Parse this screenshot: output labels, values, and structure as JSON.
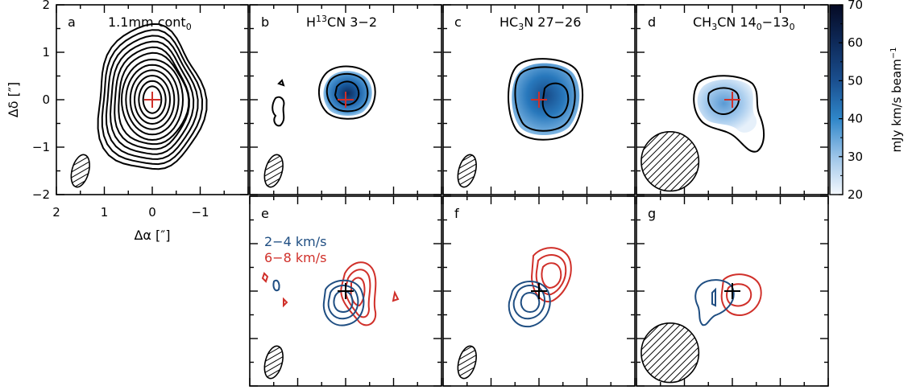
{
  "chart_data": [
    {
      "type": "contour",
      "panel": "a",
      "label_letter": "a",
      "label_text": "1.1mm cont",
      "label_sub": "0",
      "xlabel": "Δα [″]",
      "ylabel": "Δδ [″]",
      "xlim": [
        2,
        -2
      ],
      "ylim": [
        -2,
        2
      ],
      "xticks": [
        "2",
        "1",
        "0",
        "−1"
      ],
      "yticks": [
        "2",
        "1",
        "0",
        "−1",
        "−2"
      ],
      "contour_levels": 12,
      "marker": {
        "x": 0,
        "y": 0,
        "color": "#d0302a"
      },
      "beam": {
        "x": 1.5,
        "y": -1.5,
        "major": 0.7,
        "minor": 0.35
      }
    },
    {
      "type": "heatmap",
      "panel": "b",
      "label_letter": "b",
      "label_parts": [
        {
          "t": "H"
        },
        {
          "t": "13",
          "sup": true
        },
        {
          "t": "CN 3−2"
        }
      ],
      "peak_mJy": 55,
      "contour_levels": 3,
      "marker": {
        "x": 0,
        "y": 0,
        "color": "#d0302a"
      },
      "beam": {
        "x": 1.5,
        "y": -1.5,
        "major": 0.7,
        "minor": 0.35
      }
    },
    {
      "type": "heatmap",
      "panel": "c",
      "label_letter": "c",
      "label_parts": [
        {
          "t": "HC"
        },
        {
          "t": "3",
          "sub": true
        },
        {
          "t": "N 27−26"
        }
      ],
      "peak_mJy": 50,
      "contour_levels": 3,
      "marker": {
        "x": 0,
        "y": 0,
        "color": "#d0302a"
      },
      "beam": {
        "x": 1.5,
        "y": -1.5,
        "major": 0.7,
        "minor": 0.35
      }
    },
    {
      "type": "heatmap",
      "panel": "d",
      "label_letter": "d",
      "label_parts": [
        {
          "t": "CH"
        },
        {
          "t": "3",
          "sub": true
        },
        {
          "t": "CN 14"
        },
        {
          "t": "0",
          "sub": true
        },
        {
          "t": "−13"
        },
        {
          "t": "0",
          "sub": true
        }
      ],
      "peak_mJy": 35,
      "contour_levels": 2,
      "marker": {
        "x": 0,
        "y": 0,
        "color": "#d0302a"
      },
      "beam": {
        "x": 1.5,
        "y": -1.5,
        "major": 1.25,
        "minor": 1.2
      }
    },
    {
      "type": "colorbar",
      "label": "mJy km/s beam",
      "label_sup": "−1",
      "range": [
        20,
        70
      ],
      "ticks": [
        "70",
        "60",
        "50",
        "40",
        "30",
        "20"
      ]
    },
    {
      "type": "contour",
      "panel": "e",
      "label_letter": "e",
      "legend": [
        {
          "text": "2−4 km/s",
          "color": "#1f4e82"
        },
        {
          "text": "6−8 km/s",
          "color": "#d0302a"
        }
      ],
      "marker": {
        "x": 0,
        "y": 0,
        "color": "#000000"
      },
      "beam": {
        "x": 1.5,
        "y": -1.5,
        "major": 0.7,
        "minor": 0.35
      }
    },
    {
      "type": "contour",
      "panel": "f",
      "label_letter": "f",
      "marker": {
        "x": 0,
        "y": 0,
        "color": "#000000"
      },
      "beam": {
        "x": 1.5,
        "y": -1.5,
        "major": 0.7,
        "minor": 0.35
      }
    },
    {
      "type": "contour",
      "panel": "g",
      "label_letter": "g",
      "marker": {
        "x": 0,
        "y": 0,
        "color": "#000000"
      },
      "beam": {
        "x": 1.5,
        "y": -1.5,
        "major": 1.25,
        "minor": 1.2
      }
    }
  ],
  "colors": {
    "blue": "#1f4e82",
    "red": "#d0302a",
    "ink": "#000000"
  }
}
